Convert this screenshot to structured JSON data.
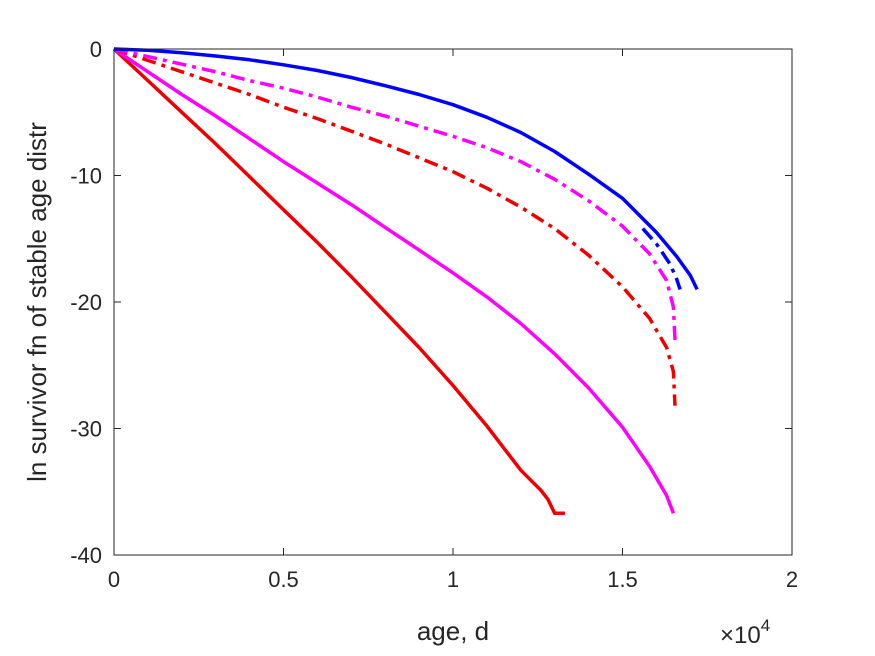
{
  "chart_data": {
    "type": "line",
    "xlabel": "age, d",
    "ylabel": "ln survivor fn of stable age distr",
    "xlim": [
      0,
      20000
    ],
    "ylim": [
      -40,
      0
    ],
    "x_exponent_label": {
      "base": "×10",
      "exp": "4"
    },
    "x_ticks": [
      {
        "value": 0,
        "label": "0"
      },
      {
        "value": 5000,
        "label": "0.5"
      },
      {
        "value": 10000,
        "label": "1"
      },
      {
        "value": 15000,
        "label": "1.5"
      },
      {
        "value": 20000,
        "label": "2"
      }
    ],
    "y_ticks": [
      {
        "value": 0,
        "label": "0"
      },
      {
        "value": -10,
        "label": "-10"
      },
      {
        "value": -20,
        "label": "-20"
      },
      {
        "value": -30,
        "label": "-30"
      },
      {
        "value": -40,
        "label": "-40"
      }
    ],
    "grid": false,
    "series": [
      {
        "color": "#ee0000",
        "style": "solid",
        "x": [
          0,
          1000,
          2000,
          3000,
          4000,
          5000,
          6000,
          7000,
          8000,
          9000,
          10000,
          11000,
          12000,
          12600,
          12800,
          13000,
          13300
        ],
        "y": [
          0,
          -2.5,
          -5.0,
          -7.5,
          -10.1,
          -12.7,
          -15.3,
          -18.0,
          -20.8,
          -23.6,
          -26.6,
          -29.8,
          -33.3,
          -34.9,
          -35.6,
          -36.7,
          -36.7
        ]
      },
      {
        "color": "#ff00ff",
        "style": "solid",
        "x": [
          0,
          1000,
          2000,
          3000,
          4000,
          5000,
          6000,
          7000,
          8000,
          9000,
          10000,
          11000,
          12000,
          13000,
          14000,
          15000,
          15800,
          16300,
          16500
        ],
        "y": [
          0,
          -1.8,
          -3.6,
          -5.3,
          -7.1,
          -8.9,
          -10.6,
          -12.3,
          -14.1,
          -15.9,
          -17.7,
          -19.6,
          -21.7,
          -24.1,
          -26.8,
          -29.9,
          -33.0,
          -35.3,
          -36.7
        ]
      },
      {
        "color": "#ee0000",
        "style": "dashdot",
        "x": [
          0,
          1000,
          2000,
          3000,
          4000,
          5000,
          6000,
          7000,
          8000,
          9000,
          10000,
          11000,
          12000,
          13000,
          14000,
          15000,
          15800,
          16300,
          16500,
          16550
        ],
        "y": [
          0,
          -0.9,
          -1.8,
          -2.7,
          -3.6,
          -4.6,
          -5.5,
          -6.5,
          -7.5,
          -8.6,
          -9.7,
          -11.0,
          -12.5,
          -14.2,
          -16.3,
          -18.8,
          -21.3,
          -23.6,
          -25.5,
          -28.2
        ]
      },
      {
        "color": "#ff00ff",
        "style": "dashdot",
        "x": [
          0,
          1000,
          2000,
          3000,
          4000,
          5000,
          6000,
          7000,
          8000,
          9000,
          10000,
          11000,
          12000,
          13000,
          14000,
          15000,
          15800,
          16300,
          16500,
          16550
        ],
        "y": [
          0,
          -0.6,
          -1.2,
          -1.8,
          -2.5,
          -3.1,
          -3.8,
          -4.6,
          -5.3,
          -6.1,
          -6.9,
          -7.8,
          -8.9,
          -10.3,
          -12.0,
          -14.0,
          -16.2,
          -18.3,
          -20.4,
          -23.0
        ]
      },
      {
        "color": "#0000ff",
        "style": "dashdot",
        "x": [
          15600,
          16000,
          16400,
          16600,
          16700
        ],
        "y": [
          -14.2,
          -15.4,
          -17.0,
          -18.2,
          -19.0
        ]
      },
      {
        "color": "#0000ff",
        "style": "solid",
        "x": [
          0,
          1000,
          2000,
          3000,
          4000,
          5000,
          6000,
          7000,
          8000,
          9000,
          10000,
          11000,
          12000,
          13000,
          14000,
          15000,
          16000,
          16600,
          17000,
          17200
        ],
        "y": [
          0,
          -0.1,
          -0.3,
          -0.55,
          -0.85,
          -1.25,
          -1.7,
          -2.25,
          -2.9,
          -3.6,
          -4.4,
          -5.4,
          -6.6,
          -8.1,
          -9.9,
          -11.8,
          -14.5,
          -16.4,
          -17.9,
          -19.0
        ]
      }
    ]
  }
}
